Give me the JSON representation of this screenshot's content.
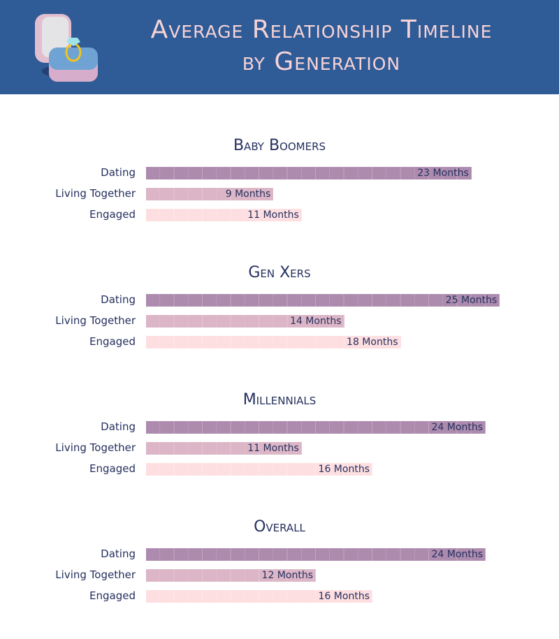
{
  "header": {
    "title_line1": "Average Relationship Timeline",
    "title_line2": "by Generation",
    "icon": "ring-box-icon"
  },
  "colors": {
    "header": "#2f5b97",
    "title": "#f6d3d6",
    "text": "#25305e",
    "Dating": "#ad8bae",
    "Living Together": "#dcb6c6",
    "Engaged": "#fedfe1"
  },
  "chart_data": {
    "type": "bar",
    "orientation": "horizontal",
    "title": "Average Relationship Timeline by Generation",
    "unit": "Months",
    "categories": [
      "Dating",
      "Living Together",
      "Engaged"
    ],
    "groups": [
      {
        "name": "Baby Boomers",
        "values": [
          23,
          9,
          11
        ],
        "labels": [
          "23 Months",
          "9 Months",
          "11 Months"
        ]
      },
      {
        "name": "Gen Xers",
        "values": [
          25,
          14,
          18
        ],
        "labels": [
          "25 Months",
          "14 Months",
          "18 Months"
        ]
      },
      {
        "name": "Millennials",
        "values": [
          24,
          11,
          16
        ],
        "labels": [
          "24 Months",
          "11 Months",
          "16 Months"
        ]
      },
      {
        "name": "Overall",
        "values": [
          24,
          12,
          16
        ],
        "labels": [
          "24 Months",
          "12 Months",
          "16 Months"
        ]
      }
    ]
  }
}
